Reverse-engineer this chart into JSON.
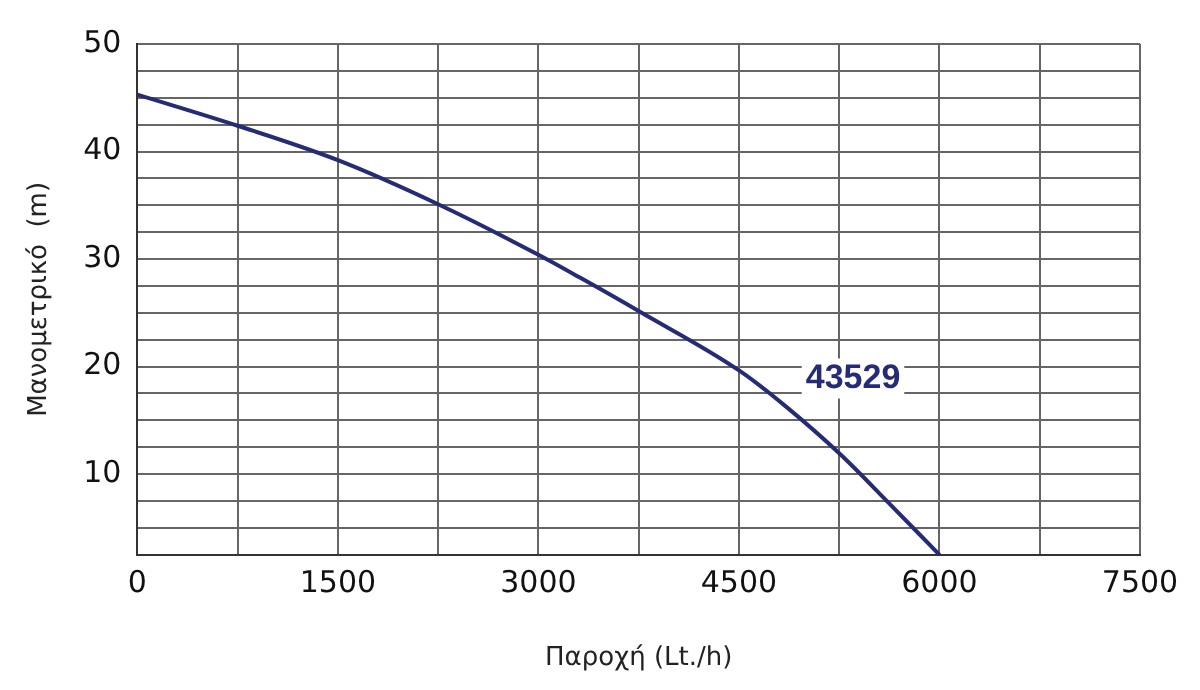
{
  "chart_data": {
    "type": "line",
    "xlabel": "Παροχή (Lt./h)",
    "ylabel": "Μανομετρικό  (m)",
    "x": [
      0,
      750,
      1500,
      2250,
      3000,
      3307,
      3759,
      4506,
      4850,
      5262,
      5622,
      6000
    ],
    "series": [
      {
        "name": "43529",
        "color": "#252b75",
        "values": [
          45.3,
          42.4,
          39.2,
          35.1,
          30.4,
          28.3,
          25.1,
          19.6,
          16.3,
          11.8,
          7.3,
          2.5
        ]
      }
    ],
    "xlim": [
      0,
      7500
    ],
    "xticks": [
      0,
      {
        "value": 750,
        "label": null
      },
      1500,
      {
        "value": 2250,
        "label": null
      },
      3000,
      {
        "value": 3750,
        "label": null
      },
      4500,
      {
        "value": 5250,
        "label": null
      },
      6000,
      {
        "value": 6750,
        "label": null
      },
      7500
    ],
    "ylim": [
      2.5,
      50
    ],
    "yticks": [
      {
        "value": 2.5,
        "label": null
      },
      {
        "value": 5,
        "label": null
      },
      {
        "value": 7.5,
        "label": null
      },
      10,
      {
        "value": 12.5,
        "label": null
      },
      {
        "value": 15,
        "label": null
      },
      {
        "value": 17.5,
        "label": null
      },
      20,
      {
        "value": 22.5,
        "label": null
      },
      {
        "value": 25,
        "label": null
      },
      {
        "value": 27.5,
        "label": null
      },
      30,
      {
        "value": 32.5,
        "label": null
      },
      {
        "value": 35,
        "label": null
      },
      {
        "value": 37.5,
        "label": null
      },
      40,
      {
        "value": 42.5,
        "label": null
      },
      {
        "value": 45,
        "label": null
      },
      {
        "value": 47.5,
        "label": null
      },
      50
    ],
    "grid": true,
    "legend": false,
    "marker": "none",
    "line_style": "solid"
  }
}
